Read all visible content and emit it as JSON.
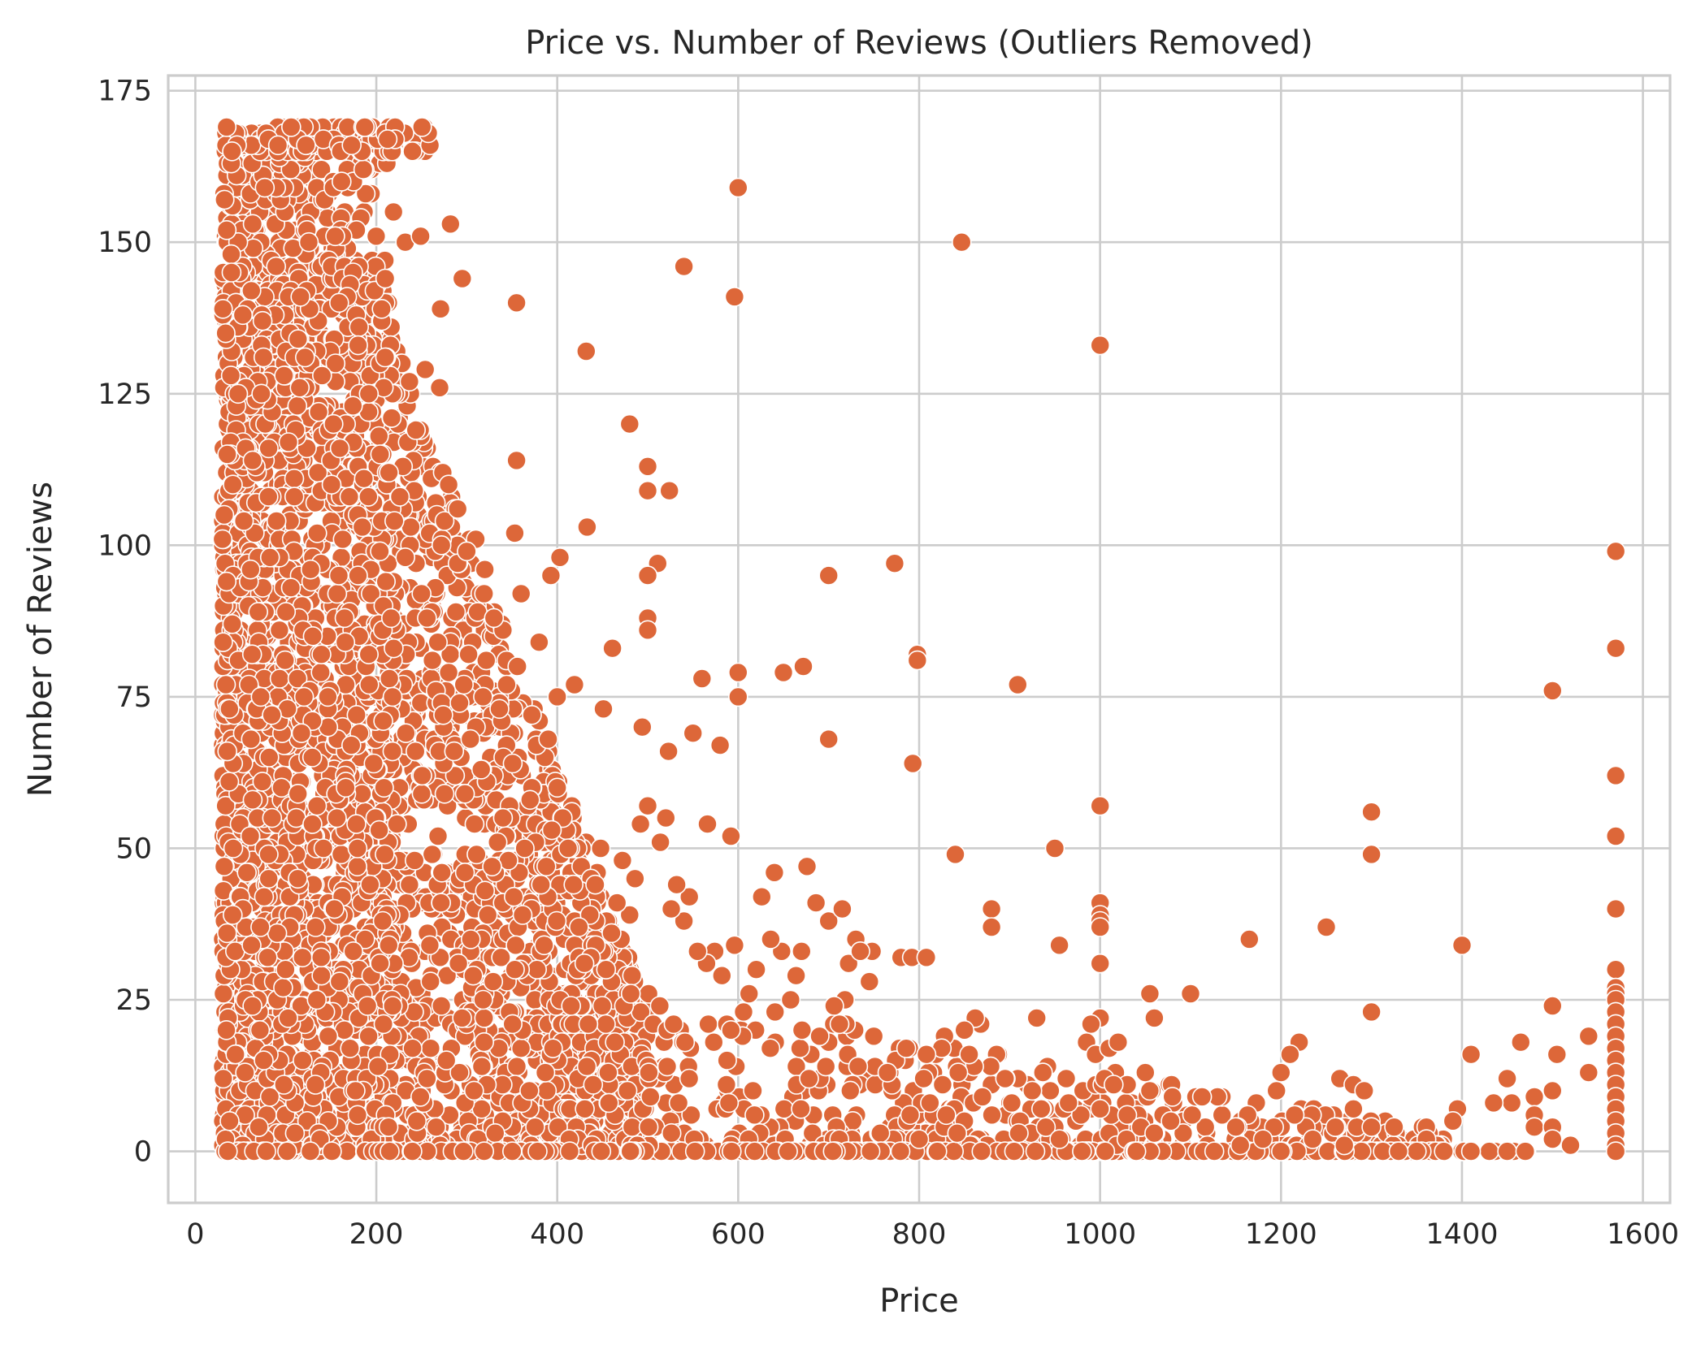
{
  "chart_data": {
    "type": "scatter",
    "title": "Price vs. Number of Reviews (Outliers Removed)",
    "xlabel": "Price",
    "ylabel": "Number of Reviews",
    "xlim": [
      -30,
      1630
    ],
    "ylim": [
      -8.5,
      177.5
    ],
    "xticks": [
      0,
      200,
      400,
      600,
      800,
      1000,
      1200,
      1400,
      1600
    ],
    "yticks": [
      0,
      25,
      50,
      75,
      100,
      125,
      150,
      175
    ],
    "grid": true,
    "marker_color": "#dd6739",
    "series": [
      {
        "name": "",
        "points": [
          [
            600,
            159
          ],
          [
            847,
            150
          ],
          [
            540,
            146
          ],
          [
            1000,
            133
          ],
          [
            355,
            140
          ],
          [
            432,
            132
          ],
          [
            596,
            141
          ],
          [
            282,
            153
          ],
          [
            295,
            144
          ],
          [
            271,
            139
          ],
          [
            219,
            155
          ],
          [
            232,
            150
          ],
          [
            249,
            151
          ],
          [
            254,
            129
          ],
          [
            270,
            126
          ],
          [
            480,
            120
          ],
          [
            500,
            113
          ],
          [
            500,
            109
          ],
          [
            524,
            109
          ],
          [
            355,
            114
          ],
          [
            433,
            103
          ],
          [
            353,
            102
          ],
          [
            511,
            97
          ],
          [
            500,
            95
          ],
          [
            403,
            98
          ],
          [
            393,
            95
          ],
          [
            700,
            95
          ],
          [
            773,
            97
          ],
          [
            500,
            88
          ],
          [
            500,
            86
          ],
          [
            600,
            79
          ],
          [
            461,
            83
          ],
          [
            650,
            79
          ],
          [
            672,
            80
          ],
          [
            798,
            82
          ],
          [
            798,
            81
          ],
          [
            909,
            77
          ],
          [
            560,
            78
          ],
          [
            600,
            75
          ],
          [
            700,
            68
          ],
          [
            793,
            64
          ],
          [
            523,
            66
          ],
          [
            550,
            69
          ],
          [
            580,
            67
          ],
          [
            494,
            70
          ],
          [
            451,
            73
          ],
          [
            419,
            77
          ],
          [
            1000,
            57
          ],
          [
            1300,
            56
          ],
          [
            1300,
            49
          ],
          [
            950,
            50
          ],
          [
            840,
            49
          ],
          [
            592,
            52
          ],
          [
            566,
            54
          ],
          [
            880,
            40
          ],
          [
            880,
            37
          ],
          [
            1000,
            41
          ],
          [
            1000,
            39
          ],
          [
            1000,
            38
          ],
          [
            1000,
            37
          ],
          [
            1000,
            31
          ],
          [
            1165,
            35
          ],
          [
            1250,
            37
          ],
          [
            1400,
            34
          ],
          [
            955,
            34
          ],
          [
            700,
            38
          ],
          [
            715,
            40
          ],
          [
            780,
            32
          ],
          [
            792,
            32
          ],
          [
            808,
            32
          ],
          [
            1055,
            26
          ],
          [
            1100,
            26
          ],
          [
            1060,
            22
          ],
          [
            1300,
            23
          ],
          [
            1500,
            76
          ],
          [
            1570,
            99
          ],
          [
            1570,
            83
          ],
          [
            1570,
            62
          ],
          [
            1570,
            52
          ],
          [
            1570,
            40
          ],
          [
            1570,
            30
          ],
          [
            1570,
            27
          ],
          [
            1570,
            26
          ],
          [
            1570,
            25
          ],
          [
            1570,
            23
          ],
          [
            1570,
            21
          ],
          [
            1570,
            19
          ],
          [
            1570,
            17
          ],
          [
            1570,
            15
          ],
          [
            1570,
            13
          ],
          [
            1570,
            11
          ],
          [
            1570,
            9
          ],
          [
            1570,
            7
          ],
          [
            1570,
            5
          ],
          [
            1570,
            3
          ],
          [
            1570,
            1
          ],
          [
            1570,
            0
          ],
          [
            1500,
            24
          ],
          [
            1540,
            19
          ],
          [
            1465,
            18
          ],
          [
            1410,
            16
          ],
          [
            1505,
            16
          ],
          [
            1540,
            13
          ],
          [
            1450,
            12
          ],
          [
            1500,
            10
          ],
          [
            1480,
            9
          ],
          [
            1455,
            8
          ],
          [
            1435,
            8
          ],
          [
            1480,
            6
          ],
          [
            1480,
            4
          ],
          [
            1500,
            4
          ],
          [
            1395,
            7
          ],
          [
            1390,
            5
          ],
          [
            1500,
            2
          ],
          [
            1520,
            1
          ],
          [
            1450,
            0
          ],
          [
            1470,
            0
          ],
          [
            1410,
            0
          ],
          [
            1380,
            0
          ],
          [
            1350,
            0
          ],
          [
            1330,
            0
          ],
          [
            1325,
            4
          ],
          [
            1220,
            18
          ],
          [
            1210,
            16
          ],
          [
            1200,
            13
          ],
          [
            1195,
            10
          ],
          [
            1215,
            6
          ],
          [
            1265,
            12
          ],
          [
            1280,
            11
          ],
          [
            1292,
            10
          ],
          [
            1280,
            7
          ],
          [
            1300,
            4
          ],
          [
            1260,
            4
          ],
          [
            1235,
            2
          ],
          [
            1270,
            1
          ],
          [
            1200,
            0
          ],
          [
            1180,
            2
          ],
          [
            1150,
            4
          ],
          [
            1155,
            1
          ],
          [
            1080,
            9
          ],
          [
            1078,
            5
          ],
          [
            1030,
            11
          ],
          [
            1030,
            6
          ],
          [
            1050,
            13
          ],
          [
            1055,
            10
          ],
          [
            1045,
            4
          ],
          [
            1060,
            3
          ],
          [
            1040,
            0
          ],
          [
            1000,
            22
          ],
          [
            990,
            21
          ],
          [
            985,
            18
          ],
          [
            995,
            16
          ],
          [
            1010,
            17
          ],
          [
            1020,
            18
          ],
          [
            1005,
            12
          ],
          [
            1015,
            11
          ],
          [
            1000,
            7
          ],
          [
            930,
            22
          ],
          [
            945,
            10
          ],
          [
            925,
            10
          ],
          [
            935,
            7
          ],
          [
            940,
            4
          ],
          [
            955,
            2
          ],
          [
            910,
            3
          ],
          [
            895,
            12
          ],
          [
            905,
            0
          ],
          [
            980,
            0
          ],
          [
            868,
            21
          ],
          [
            862,
            22
          ],
          [
            850,
            20
          ],
          [
            828,
            19
          ],
          [
            825,
            17
          ],
          [
            808,
            16
          ],
          [
            805,
            12
          ],
          [
            826,
            11
          ],
          [
            812,
            8
          ],
          [
            830,
            6
          ],
          [
            850,
            5
          ],
          [
            860,
            8
          ],
          [
            870,
            9
          ],
          [
            842,
            3
          ],
          [
            820,
            0
          ],
          [
            800,
            2
          ],
          [
            790,
            6
          ],
          [
            770,
            11
          ],
          [
            765,
            13
          ],
          [
            745,
            28
          ],
          [
            748,
            33
          ],
          [
            730,
            35
          ],
          [
            722,
            31
          ],
          [
            735,
            33
          ],
          [
            718,
            25
          ],
          [
            712,
            21
          ],
          [
            706,
            24
          ],
          [
            700,
            18
          ],
          [
            690,
            19
          ],
          [
            686,
            41
          ],
          [
            676,
            47
          ],
          [
            670,
            33
          ],
          [
            658,
            25
          ],
          [
            664,
            29
          ],
          [
            648,
            33
          ],
          [
            640,
            46
          ],
          [
            636,
            35
          ],
          [
            626,
            42
          ],
          [
            620,
            30
          ],
          [
            612,
            26
          ],
          [
            606,
            23
          ],
          [
            596,
            34
          ],
          [
            592,
            20
          ],
          [
            582,
            29
          ],
          [
            574,
            33
          ],
          [
            565,
            31
          ],
          [
            555,
            33
          ],
          [
            546,
            42
          ],
          [
            540,
            38
          ],
          [
            532,
            44
          ],
          [
            526,
            40
          ],
          [
            520,
            55
          ],
          [
            514,
            51
          ],
          [
            500,
            57
          ],
          [
            492,
            54
          ],
          [
            486,
            45
          ],
          [
            480,
            39
          ],
          [
            472,
            48
          ],
          [
            466,
            41
          ],
          [
            460,
            36
          ],
          [
            454,
            30
          ],
          [
            448,
            50
          ],
          [
            442,
            44
          ],
          [
            436,
            39
          ],
          [
            430,
            31
          ],
          [
            424,
            37
          ],
          [
            418,
            44
          ],
          [
            412,
            50
          ],
          [
            406,
            55
          ],
          [
            400,
            60
          ],
          [
            394,
            53
          ],
          [
            388,
            47
          ],
          [
            382,
            44
          ],
          [
            376,
            51
          ],
          [
            370,
            58
          ],
          [
            364,
            50
          ],
          [
            358,
            46
          ],
          [
            352,
            42
          ],
          [
            346,
            48
          ],
          [
            340,
            55
          ],
          [
            334,
            51
          ],
          [
            328,
            47
          ],
          [
            322,
            61
          ],
          [
            316,
            63
          ],
          [
            310,
            70
          ],
          [
            304,
            68
          ],
          [
            298,
            59
          ],
          [
            292,
            74
          ],
          [
            286,
            66
          ],
          [
            280,
            79
          ],
          [
            274,
            72
          ],
          [
            268,
            84
          ],
          [
            262,
            81
          ],
          [
            256,
            88
          ],
          [
            250,
            92
          ],
          [
            244,
            97
          ],
          [
            238,
            103
          ],
          [
            232,
            98
          ],
          [
            226,
            108
          ],
          [
            220,
            104
          ],
          [
            214,
            112
          ],
          [
            340,
            86
          ],
          [
            360,
            92
          ],
          [
            380,
            84
          ],
          [
            330,
            88
          ],
          [
            320,
            96
          ],
          [
            310,
            101
          ],
          [
            300,
            99
          ],
          [
            290,
            106
          ],
          [
            280,
            110
          ],
          [
            400,
            75
          ],
          [
            390,
            68
          ],
          [
            372,
            72
          ],
          [
            356,
            80
          ],
          [
            344,
            77
          ],
          [
            336,
            73
          ],
          [
            318,
            75
          ],
          [
            302,
            82
          ],
          [
            288,
            89
          ]
        ]
      }
    ]
  }
}
